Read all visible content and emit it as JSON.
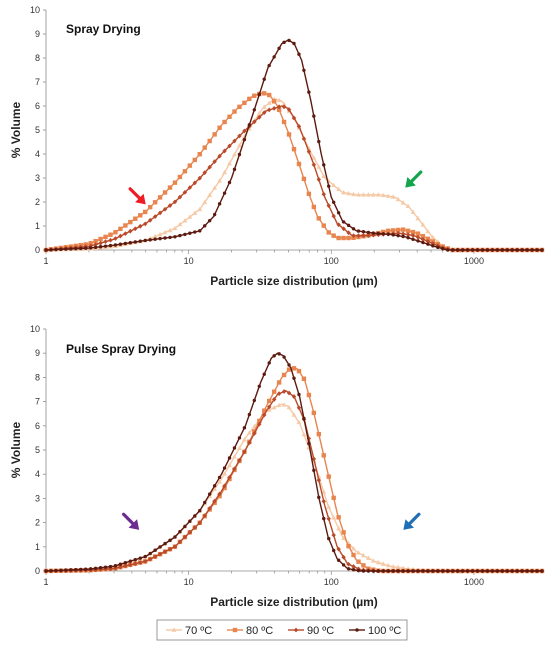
{
  "chart_data": [
    {
      "type": "line",
      "title": "Spray Drying",
      "xlabel": "Particle size distribution (µm)",
      "ylabel": "% Volume",
      "xscale": "log",
      "xlim": [
        1,
        3000
      ],
      "ylim": [
        0,
        10
      ],
      "xticks": [
        "1",
        "10",
        "100",
        "1000"
      ],
      "yticks": [
        "0",
        "1",
        "2",
        "3",
        "4",
        "5",
        "6",
        "7",
        "8",
        "9",
        "10"
      ],
      "grid": false,
      "series": [
        {
          "name": "70 ºC",
          "color": "#f6c9a6",
          "marker": "triangle",
          "x": [
            1,
            2,
            3,
            5,
            8,
            12,
            17,
            25,
            33,
            40,
            45,
            55,
            70,
            90,
            120,
            150,
            180,
            220,
            280,
            350,
            420,
            500,
            620,
            700,
            1000,
            3000
          ],
          "y": [
            0,
            0.05,
            0.15,
            0.4,
            0.9,
            1.7,
            3.0,
            4.8,
            5.9,
            6.3,
            6.2,
            5.5,
            4.2,
            3.0,
            2.4,
            2.3,
            2.3,
            2.3,
            2.2,
            1.8,
            1.2,
            0.6,
            0.1,
            0,
            0,
            0
          ]
        },
        {
          "name": "80 ºC",
          "color": "#e8854f",
          "marker": "square",
          "x": [
            1,
            2,
            3,
            5,
            8,
            12,
            17,
            22,
            28,
            33,
            37,
            42,
            50,
            60,
            70,
            80,
            95,
            110,
            140,
            180,
            250,
            320,
            400,
            500,
            600,
            700,
            1000,
            3000
          ],
          "y": [
            0,
            0.25,
            0.7,
            1.6,
            2.8,
            4.0,
            5.2,
            5.9,
            6.4,
            6.55,
            6.45,
            6.0,
            4.9,
            3.5,
            2.3,
            1.4,
            0.75,
            0.5,
            0.5,
            0.6,
            0.8,
            0.85,
            0.7,
            0.4,
            0.15,
            0,
            0,
            0
          ]
        },
        {
          "name": "90 ºC",
          "color": "#b94a2a",
          "marker": "diamond",
          "x": [
            1,
            2,
            3,
            5,
            8,
            12,
            17,
            25,
            35,
            45,
            50,
            60,
            75,
            90,
            110,
            140,
            180,
            230,
            300,
            380,
            480,
            600,
            700,
            1000,
            3000
          ],
          "y": [
            0,
            0.15,
            0.45,
            1.1,
            2.0,
            3.0,
            4.0,
            5.0,
            5.8,
            6.0,
            5.9,
            5.1,
            3.6,
            2.2,
            1.1,
            0.6,
            0.6,
            0.65,
            0.7,
            0.6,
            0.35,
            0.1,
            0,
            0,
            0
          ]
        },
        {
          "name": "100 ºC",
          "color": "#5c1a10",
          "marker": "circle",
          "x": [
            1,
            2,
            3,
            5,
            8,
            12,
            15,
            20,
            28,
            36,
            45,
            50,
            55,
            62,
            72,
            85,
            100,
            120,
            150,
            200,
            260,
            330,
            420,
            530,
            650,
            1000,
            3000
          ],
          "y": [
            0,
            0.08,
            0.2,
            0.4,
            0.55,
            0.8,
            1.4,
            3.0,
            5.6,
            7.6,
            8.6,
            8.75,
            8.6,
            7.9,
            6.2,
            4.0,
            2.2,
            1.2,
            0.8,
            0.7,
            0.65,
            0.55,
            0.35,
            0.15,
            0,
            0,
            0
          ]
        }
      ],
      "annotations": [
        {
          "type": "arrow",
          "color": "#ee1c25",
          "x": 5,
          "y": 1.9,
          "direction": "down-right"
        },
        {
          "type": "arrow",
          "color": "#13a54b",
          "x": 330,
          "y": 2.6,
          "direction": "down-left"
        }
      ]
    },
    {
      "type": "line",
      "title": "Pulse Spray Drying",
      "xlabel": "Particle size distribution (µm)",
      "ylabel": "% Volume",
      "xscale": "log",
      "xlim": [
        1,
        3000
      ],
      "ylim": [
        0,
        10
      ],
      "xticks": [
        "1",
        "10",
        "100",
        "1000"
      ],
      "yticks": [
        "0",
        "1",
        "2",
        "3",
        "4",
        "5",
        "6",
        "7",
        "8",
        "9",
        "10"
      ],
      "grid": false,
      "series": [
        {
          "name": "70 ºC",
          "color": "#f6c9a6",
          "marker": "triangle",
          "x": [
            1,
            2,
            3,
            5,
            8,
            12,
            17,
            25,
            35,
            45,
            50,
            60,
            75,
            95,
            120,
            150,
            200,
            260,
            350,
            500,
            700,
            1000,
            3000
          ],
          "y": [
            0,
            0.05,
            0.15,
            0.6,
            1.4,
            2.5,
            3.8,
            5.5,
            6.6,
            6.9,
            6.8,
            6.1,
            4.6,
            2.7,
            1.4,
            0.8,
            0.4,
            0.2,
            0.08,
            0,
            0,
            0,
            0
          ]
        },
        {
          "name": "80 ºC",
          "color": "#e8854f",
          "marker": "square",
          "x": [
            1,
            2,
            3,
            5,
            8,
            12,
            17,
            25,
            35,
            45,
            52,
            58,
            65,
            75,
            90,
            110,
            130,
            150,
            180,
            220,
            300,
            1000,
            3000
          ],
          "y": [
            0,
            0.03,
            0.1,
            0.4,
            1.0,
            2.0,
            3.2,
            5.0,
            6.8,
            8.0,
            8.4,
            8.35,
            7.9,
            6.6,
            4.6,
            2.4,
            1.1,
            0.45,
            0.1,
            0,
            0,
            0,
            0
          ]
        },
        {
          "name": "90 ºC",
          "color": "#b94a2a",
          "marker": "diamond",
          "x": [
            1,
            2,
            3,
            5,
            8,
            12,
            17,
            25,
            35,
            42,
            48,
            55,
            65,
            75,
            90,
            110,
            130,
            160,
            200,
            300,
            1000,
            3000
          ],
          "y": [
            0,
            0.03,
            0.1,
            0.4,
            1.0,
            2.0,
            3.3,
            5.0,
            6.6,
            7.3,
            7.45,
            7.2,
            6.2,
            4.7,
            2.7,
            1.0,
            0.3,
            0.05,
            0,
            0,
            0,
            0
          ]
        },
        {
          "name": "100 ºC",
          "color": "#5c1a10",
          "marker": "circle",
          "x": [
            1,
            2,
            3,
            5,
            8,
            12,
            17,
            25,
            32,
            38,
            42,
            46,
            52,
            60,
            70,
            82,
            95,
            110,
            130,
            160,
            200,
            1000,
            3000
          ],
          "y": [
            0,
            0.08,
            0.2,
            0.6,
            1.4,
            2.5,
            4.0,
            6.0,
            7.8,
            8.8,
            9.0,
            8.9,
            8.4,
            7.2,
            5.2,
            3.0,
            1.4,
            0.5,
            0.1,
            0,
            0,
            0,
            0
          ]
        }
      ],
      "annotations": [
        {
          "type": "arrow",
          "color": "#6a2c8f",
          "x": 4.5,
          "y": 1.7,
          "direction": "down-right"
        },
        {
          "type": "arrow",
          "color": "#1f6fb5",
          "x": 320,
          "y": 1.7,
          "direction": "down-left"
        }
      ]
    }
  ],
  "legend": {
    "placement": "bottom",
    "entries": [
      "70 ºC",
      "80 ºC",
      "90 ºC",
      "100 ºC"
    ],
    "colors": [
      "#f6c9a6",
      "#e8854f",
      "#b94a2a",
      "#5c1a10"
    ],
    "markers": [
      "triangle",
      "square",
      "diamond",
      "circle"
    ]
  }
}
